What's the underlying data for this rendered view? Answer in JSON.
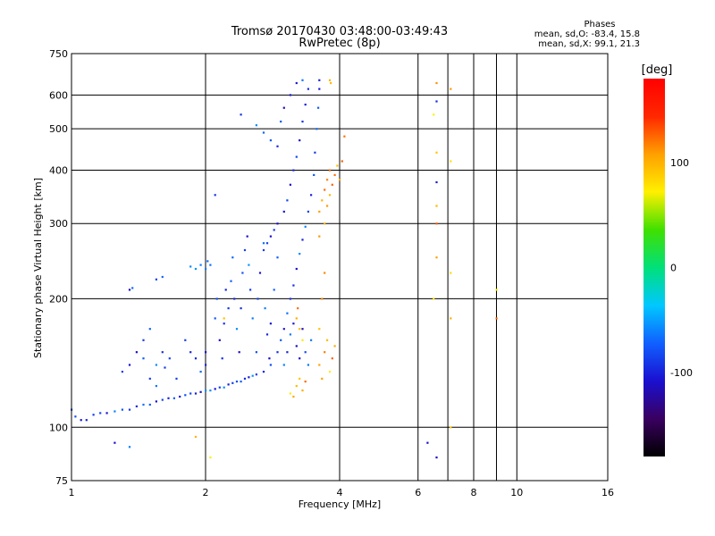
{
  "header": {
    "title_line1": "Tromsø 20170430 03:48:00-03:49:43",
    "title_line2": "RwPretec (8p)",
    "phases_title": "Phases",
    "phases_o": "mean, sd,O: -83.4, 15.8",
    "phases_x": "mean, sd,X:  99.1, 21.3"
  },
  "colorbar": {
    "unit_label": "[deg]",
    "ticks": [
      {
        "value": 100,
        "label": "100"
      },
      {
        "value": 0,
        "label": "0"
      },
      {
        "value": -100,
        "label": "-100"
      }
    ],
    "range": [
      -180,
      180
    ],
    "colors": [
      "#000000",
      "#3a0060",
      "#1a10d0",
      "#1060ff",
      "#00c8ff",
      "#00e07a",
      "#40e000",
      "#fff000",
      "#ffa000",
      "#ff2800",
      "#ff0000"
    ]
  },
  "chart_data": {
    "type": "scatter",
    "title": "Tromsø 20170430 03:48:00-03:49:43",
    "subtitle": "RwPretec (8p)",
    "xlabel": "Frequency [MHz]",
    "ylabel": "Stationary phase Virtual Height [km]",
    "x_scale": "log",
    "y_scale": "log",
    "xlim": [
      1,
      16
    ],
    "ylim": [
      75,
      750
    ],
    "grid": true,
    "x_ticks": [
      {
        "value": 1,
        "label": "1"
      },
      {
        "value": 2,
        "label": "2"
      },
      {
        "value": 4,
        "label": "4"
      },
      {
        "value": 6,
        "label": "6"
      },
      {
        "value": 8,
        "label": "8"
      },
      {
        "value": 10,
        "label": "10"
      },
      {
        "value": 16,
        "label": "16"
      }
    ],
    "y_ticks": [
      {
        "value": 75,
        "label": "75"
      },
      {
        "value": 100,
        "label": "100"
      },
      {
        "value": 200,
        "label": "200"
      },
      {
        "value": 300,
        "label": "300"
      },
      {
        "value": 400,
        "label": "400"
      },
      {
        "value": 500,
        "label": "500"
      },
      {
        "value": 600,
        "label": "600"
      },
      {
        "value": 750,
        "label": "750"
      }
    ],
    "extra_grid_x": [
      7,
      9
    ],
    "color_by": "phase (deg)",
    "series": [
      {
        "mode": "O",
        "phase_mean": -83.4,
        "points": [
          [
            1.0,
            110
          ],
          [
            1.02,
            106
          ],
          [
            1.05,
            104
          ],
          [
            1.08,
            104
          ],
          [
            1.12,
            107
          ],
          [
            1.16,
            108
          ],
          [
            1.2,
            108
          ],
          [
            1.25,
            109
          ],
          [
            1.3,
            110
          ],
          [
            1.35,
            110
          ],
          [
            1.4,
            112
          ],
          [
            1.45,
            113
          ],
          [
            1.5,
            113
          ],
          [
            1.55,
            115
          ],
          [
            1.6,
            116
          ],
          [
            1.65,
            117
          ],
          [
            1.7,
            117
          ],
          [
            1.75,
            118
          ],
          [
            1.8,
            119
          ],
          [
            1.85,
            120
          ],
          [
            1.9,
            120
          ],
          [
            1.95,
            121
          ],
          [
            2.0,
            122
          ],
          [
            2.05,
            122
          ],
          [
            2.1,
            123
          ],
          [
            2.15,
            124
          ],
          [
            2.2,
            124
          ],
          [
            2.25,
            126
          ],
          [
            2.3,
            127
          ],
          [
            2.35,
            128
          ],
          [
            2.4,
            128
          ],
          [
            2.45,
            130
          ],
          [
            2.5,
            131
          ],
          [
            2.55,
            132
          ],
          [
            2.6,
            133
          ],
          [
            2.7,
            135
          ],
          [
            2.8,
            140
          ],
          [
            2.9,
            150
          ],
          [
            3.0,
            170
          ],
          [
            3.05,
            185
          ],
          [
            3.1,
            200
          ],
          [
            3.15,
            215
          ],
          [
            3.2,
            235
          ],
          [
            3.25,
            255
          ],
          [
            3.3,
            275
          ],
          [
            3.35,
            295
          ],
          [
            3.4,
            320
          ],
          [
            3.45,
            350
          ],
          [
            3.5,
            390
          ],
          [
            3.52,
            440
          ],
          [
            3.55,
            500
          ],
          [
            3.58,
            560
          ],
          [
            3.6,
            620
          ],
          [
            3.6,
            650
          ],
          [
            1.3,
            135
          ],
          [
            1.35,
            140
          ],
          [
            1.4,
            150
          ],
          [
            1.45,
            160
          ],
          [
            1.5,
            170
          ],
          [
            1.45,
            145
          ],
          [
            1.55,
            140
          ],
          [
            1.6,
            150
          ],
          [
            1.62,
            138
          ],
          [
            1.66,
            145
          ],
          [
            1.72,
            130
          ],
          [
            1.55,
            125
          ],
          [
            1.5,
            130
          ],
          [
            1.8,
            160
          ],
          [
            1.85,
            150
          ],
          [
            1.9,
            145
          ],
          [
            1.95,
            135
          ],
          [
            2.0,
            150
          ],
          [
            2.0,
            140
          ],
          [
            2.05,
            240
          ],
          [
            2.0,
            235
          ],
          [
            1.9,
            235
          ],
          [
            1.85,
            238
          ],
          [
            1.95,
            240
          ],
          [
            2.02,
            245
          ],
          [
            2.1,
            180
          ],
          [
            2.12,
            200
          ],
          [
            2.15,
            160
          ],
          [
            2.18,
            145
          ],
          [
            2.2,
            175
          ],
          [
            2.22,
            210
          ],
          [
            2.25,
            190
          ],
          [
            2.28,
            220
          ],
          [
            2.3,
            250
          ],
          [
            2.32,
            200
          ],
          [
            2.35,
            170
          ],
          [
            2.38,
            150
          ],
          [
            2.4,
            190
          ],
          [
            2.42,
            230
          ],
          [
            2.45,
            260
          ],
          [
            2.48,
            280
          ],
          [
            2.5,
            240
          ],
          [
            2.52,
            210
          ],
          [
            2.55,
            180
          ],
          [
            2.6,
            150
          ],
          [
            2.62,
            200
          ],
          [
            2.65,
            230
          ],
          [
            2.7,
            270
          ],
          [
            2.72,
            190
          ],
          [
            2.75,
            165
          ],
          [
            2.78,
            145
          ],
          [
            2.8,
            175
          ],
          [
            2.85,
            210
          ],
          [
            2.9,
            250
          ],
          [
            2.95,
            160
          ],
          [
            3.0,
            140
          ],
          [
            3.05,
            150
          ],
          [
            3.1,
            165
          ],
          [
            3.15,
            175
          ],
          [
            3.2,
            155
          ],
          [
            3.25,
            145
          ],
          [
            3.3,
            170
          ],
          [
            3.35,
            150
          ],
          [
            3.4,
            140
          ],
          [
            3.45,
            160
          ],
          [
            3.0,
            320
          ],
          [
            3.05,
            340
          ],
          [
            3.1,
            370
          ],
          [
            3.15,
            400
          ],
          [
            3.2,
            430
          ],
          [
            3.25,
            470
          ],
          [
            3.3,
            520
          ],
          [
            3.35,
            570
          ],
          [
            3.4,
            620
          ],
          [
            3.3,
            650
          ],
          [
            3.2,
            640
          ],
          [
            3.1,
            600
          ],
          [
            3.0,
            560
          ],
          [
            2.95,
            520
          ],
          [
            2.9,
            300
          ],
          [
            2.85,
            290
          ],
          [
            2.8,
            280
          ],
          [
            2.75,
            270
          ],
          [
            2.7,
            260
          ],
          [
            1.35,
            210
          ],
          [
            1.37,
            212
          ],
          [
            1.55,
            222
          ],
          [
            1.6,
            225
          ],
          [
            2.4,
            540
          ],
          [
            2.6,
            510
          ],
          [
            2.7,
            490
          ],
          [
            2.8,
            470
          ],
          [
            2.9,
            455
          ],
          [
            2.1,
            350
          ],
          [
            1.25,
            92
          ],
          [
            1.35,
            90
          ],
          [
            6.3,
            92
          ],
          [
            6.6,
            85
          ],
          [
            6.6,
            375
          ],
          [
            6.6,
            580
          ]
        ]
      },
      {
        "mode": "X",
        "phase_mean": 99.1,
        "points": [
          [
            3.1,
            120
          ],
          [
            3.15,
            118
          ],
          [
            3.2,
            125
          ],
          [
            3.25,
            130
          ],
          [
            3.3,
            122
          ],
          [
            3.35,
            128
          ],
          [
            3.2,
            180
          ],
          [
            3.25,
            170
          ],
          [
            3.3,
            160
          ],
          [
            3.22,
            190
          ],
          [
            3.6,
            320
          ],
          [
            3.65,
            340
          ],
          [
            3.7,
            360
          ],
          [
            3.75,
            330
          ],
          [
            3.8,
            350
          ],
          [
            3.85,
            370
          ],
          [
            3.9,
            390
          ],
          [
            3.95,
            410
          ],
          [
            3.7,
            300
          ],
          [
            3.6,
            280
          ],
          [
            3.75,
            380
          ],
          [
            3.8,
            400
          ],
          [
            4.0,
            380
          ],
          [
            4.05,
            420
          ],
          [
            3.6,
            140
          ],
          [
            3.7,
            150
          ],
          [
            3.75,
            160
          ],
          [
            3.8,
            135
          ],
          [
            3.85,
            145
          ],
          [
            3.9,
            155
          ],
          [
            3.65,
            130
          ],
          [
            3.6,
            170
          ],
          [
            3.65,
            200
          ],
          [
            3.7,
            230
          ],
          [
            3.8,
            650
          ],
          [
            3.82,
            640
          ],
          [
            4.1,
            480
          ],
          [
            6.6,
            640
          ],
          [
            6.5,
            540
          ],
          [
            6.6,
            440
          ],
          [
            6.6,
            330
          ],
          [
            6.6,
            300
          ],
          [
            6.6,
            250
          ],
          [
            6.5,
            200
          ],
          [
            7.1,
            620
          ],
          [
            7.1,
            420
          ],
          [
            7.1,
            230
          ],
          [
            7.1,
            180
          ],
          [
            7.1,
            100
          ],
          [
            9.0,
            210
          ],
          [
            9.0,
            180
          ],
          [
            1.9,
            95
          ],
          [
            2.05,
            85
          ],
          [
            2.2,
            180
          ]
        ]
      }
    ]
  }
}
